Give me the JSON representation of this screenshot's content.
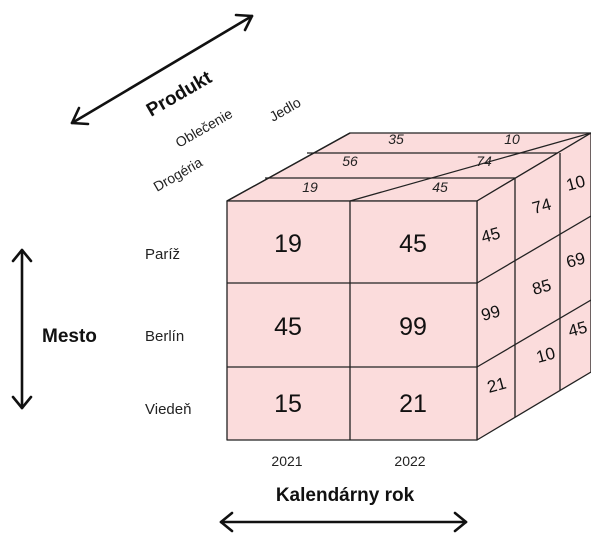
{
  "axes": {
    "product_title": "Produkt",
    "city_title": "Mesto",
    "year_title": "Kalendárny rok"
  },
  "products": [
    "Drogéria",
    "Oblečenie",
    "Jedlo"
  ],
  "cities": [
    "Paríž",
    "Berlín",
    "Viedeň"
  ],
  "years": [
    "2021",
    "2022"
  ],
  "front_values": [
    [
      "19",
      "45"
    ],
    [
      "45",
      "99"
    ],
    [
      "15",
      "21"
    ]
  ],
  "top_values": [
    [
      "19",
      "45"
    ],
    [
      "56",
      "74"
    ],
    [
      "35",
      "10"
    ]
  ],
  "side_values": [
    [
      "45",
      "74",
      "10"
    ],
    [
      "99",
      "85",
      "69"
    ],
    [
      "21",
      "10",
      "45"
    ]
  ],
  "colors": {
    "cell_fill": "#fbdcdc",
    "stroke": "#222222"
  }
}
